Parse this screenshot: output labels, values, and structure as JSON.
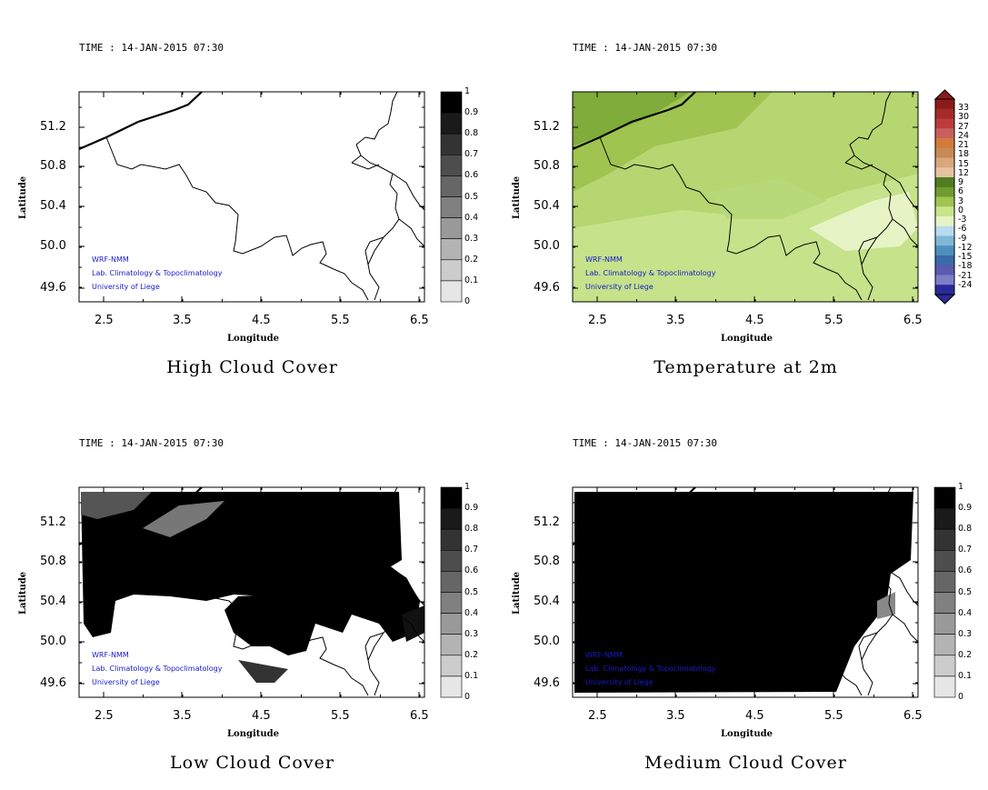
{
  "time_label": "TIME : 14-JAN-2015 07:30",
  "axes": {
    "xlabel": "Longitude",
    "ylabel": "Latitude",
    "xticks": [
      "2.5",
      "3.5",
      "4.5",
      "5.5",
      "6.5"
    ],
    "yticks": [
      "51.2",
      "50.8",
      "50.4",
      "50.0",
      "49.6"
    ]
  },
  "credits": [
    "WRF-NMM",
    "Lab. Climatology & Topoclimatology",
    "University of Liege"
  ],
  "panels": [
    {
      "id": "high",
      "title": "High Cloud Cover",
      "colorbar": [
        "1",
        "0.9",
        "0.8",
        "0.7",
        "0.6",
        "0.5",
        "0.4",
        "0.3",
        "0.2",
        "0.1",
        "0"
      ]
    },
    {
      "id": "temp",
      "title": "Temperature at 2m",
      "colorbar": [
        "33",
        "30",
        "27",
        "24",
        "21",
        "18",
        "15",
        "12",
        "9",
        "6",
        "3",
        "0",
        "-3",
        "-6",
        "-9",
        "-12",
        "-15",
        "-18",
        "-21",
        "-24"
      ]
    },
    {
      "id": "low",
      "title": "Low Cloud Cover",
      "colorbar": [
        "1",
        "0.9",
        "0.8",
        "0.7",
        "0.6",
        "0.5",
        "0.4",
        "0.3",
        "0.2",
        "0.1",
        "0"
      ]
    },
    {
      "id": "medium",
      "title": "Medium Cloud Cover",
      "colorbar": [
        "1",
        "0.9",
        "0.8",
        "0.7",
        "0.6",
        "0.5",
        "0.4",
        "0.3",
        "0.2",
        "0.1",
        "0"
      ]
    }
  ],
  "colors": {
    "cloud_scale": [
      "#000000",
      "#1a1a1a",
      "#333333",
      "#4d4d4d",
      "#666666",
      "#808080",
      "#999999",
      "#b3b3b3",
      "#cccccc",
      "#e6e6e6",
      "#ffffff"
    ],
    "temp_scale": [
      "#8b1a1a",
      "#a52a2a",
      "#bd3b3b",
      "#c95f5f",
      "#d27a3a",
      "#c88a55",
      "#d9a77a",
      "#e6c3a0",
      "#4f7d1f",
      "#6f9b2f",
      "#9fc44f",
      "#c9e48a",
      "#e6f3c4",
      "#b7dcee",
      "#7fb7d6",
      "#4d8fbf",
      "#3a6aa8",
      "#5a5ab0",
      "#7d7dc8",
      "#2a2a9a"
    ],
    "credit_text": "#1a1acc"
  }
}
